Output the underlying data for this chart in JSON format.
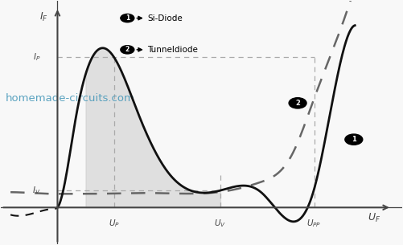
{
  "xlabel": "U_F",
  "ylabel": "I_F",
  "legend_1": "Si-Diode",
  "legend_2": "Tunneldiode",
  "watermark": "homemade-circuits.com",
  "watermark_color": "#4a9aba",
  "background_color": "#f8f8f8",
  "axis_color": "#444444",
  "tunnel_color": "#111111",
  "si_color": "#666666",
  "fill_color": "#cccccc",
  "dashed_ref_color": "#aaaaaa",
  "U_P": 0.18,
  "U_V": 0.52,
  "U_PP": 0.82,
  "I_P": 0.62,
  "I_V": 0.07,
  "x_min": -0.18,
  "x_max": 1.1,
  "y_min": -0.15,
  "y_max": 0.85
}
